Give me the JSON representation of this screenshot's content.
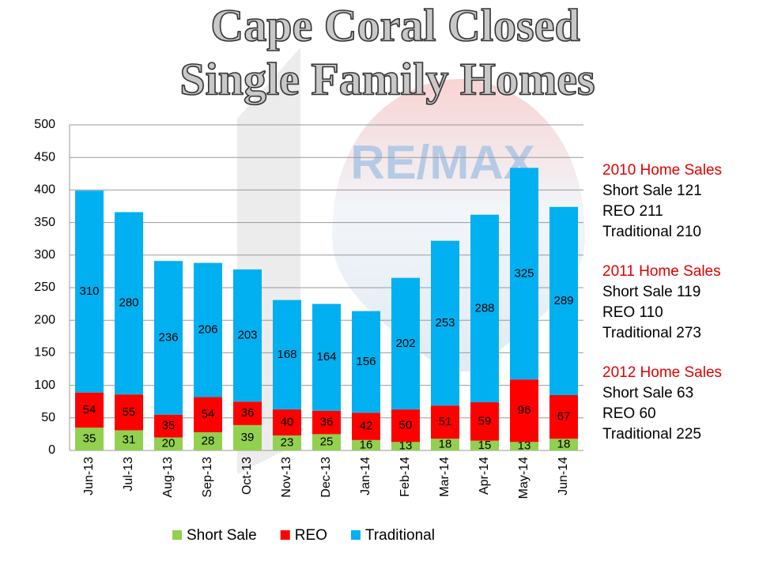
{
  "chart_data": {
    "type": "stacked_bar",
    "title": [
      "Cape Coral Closed",
      "Single Family Homes"
    ],
    "categories": [
      "Jun-13",
      "Jul-13",
      "Aug-13",
      "Sep-13",
      "Oct-13",
      "Nov-13",
      "Dec-13",
      "Jan-14",
      "Feb-14",
      "Mar-14",
      "Apr-14",
      "May-14",
      "Jun-14"
    ],
    "series": [
      {
        "name": "Short Sale",
        "color": "#92d050",
        "values": [
          35,
          31,
          20,
          28,
          39,
          23,
          25,
          16,
          13,
          18,
          15,
          13,
          18
        ]
      },
      {
        "name": "REO",
        "color": "#ff0000",
        "values": [
          54,
          55,
          35,
          54,
          36,
          40,
          36,
          42,
          50,
          51,
          59,
          96,
          67
        ]
      },
      {
        "name": "Traditional",
        "color": "#00b0f0",
        "values": [
          310,
          280,
          236,
          206,
          203,
          168,
          164,
          156,
          202,
          253,
          288,
          325,
          289
        ]
      }
    ],
    "ylim": [
      0,
      500
    ],
    "yticks": [
      0,
      50,
      100,
      150,
      200,
      250,
      300,
      350,
      400,
      450,
      500
    ],
    "grid": true,
    "legend": "bottom",
    "side_notes": [
      {
        "heading": "2010 Home Sales",
        "lines": [
          "Short Sale 121",
          "REO 211",
          "Traditional 210"
        ]
      },
      {
        "heading": "2011 Home Sales",
        "lines": [
          "Short Sale 119",
          "REO 110",
          "Traditional 273"
        ]
      },
      {
        "heading": "2012 Home Sales",
        "lines": [
          "Short Sale 63",
          "REO 60",
          "Traditional 225"
        ]
      }
    ]
  }
}
